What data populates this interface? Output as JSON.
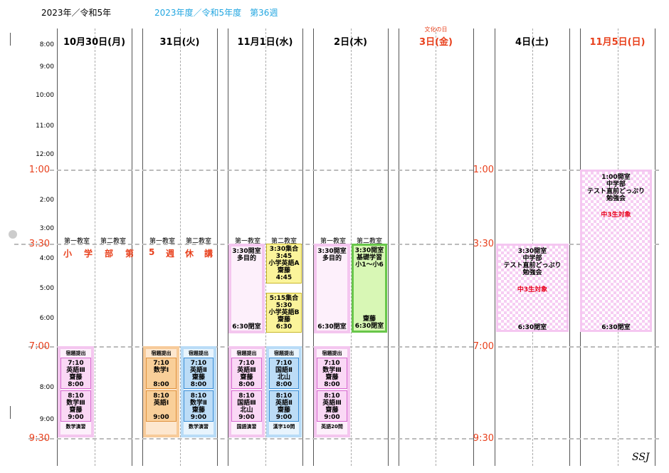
{
  "header": {
    "year_label": "2023年／令和5年",
    "fiscal_week_label": "2023年度／令和5年度　第36週",
    "signature": "SSJ"
  },
  "days": [
    {
      "label": "10月30日(月)",
      "holiday_note": ""
    },
    {
      "label": "31日(火)",
      "holiday_note": ""
    },
    {
      "label": "11月1日(水)",
      "holiday_note": ""
    },
    {
      "label": "2日(木)",
      "holiday_note": ""
    },
    {
      "label": "3日(金)",
      "holiday_note": "文化の日"
    },
    {
      "label": "4日(土)",
      "holiday_note": ""
    },
    {
      "label": "11月5日(日)",
      "holiday_note": ""
    }
  ],
  "hours": {
    "h8": "8:00",
    "h9": "9:00",
    "h10": "10:00",
    "h11": "11:00",
    "h12": "12:00",
    "h2": "2:00",
    "h3": "3:00",
    "h4": "4:00",
    "h5": "5:00",
    "h6": "6:00",
    "h8b": "8:00",
    "h9b": "9:00"
  },
  "big_times": {
    "t1": "1:00",
    "t330": "3:30",
    "t7": "7:00",
    "t930": "9:30"
  },
  "rooms": {
    "r1": "第一教室",
    "r2": "第二教室"
  },
  "monday_closed": [
    "小",
    "学",
    "部",
    "第",
    "5",
    "週",
    "休",
    "講"
  ],
  "homework": {
    "submit": "宿題提出",
    "mon_practice": "数学演習",
    "tue_practice": "数学演習",
    "wed_practice1": "国語演習",
    "wed_practice2": "漢字10問",
    "thu_practice": "英語20問"
  },
  "lessons": {
    "mon_a": [
      "7:10",
      "英語Ⅲ",
      "齋藤",
      "8:00"
    ],
    "mon_b": [
      "8:10",
      "数学Ⅲ",
      "齋藤",
      "9:00"
    ],
    "tue1_a": [
      "7:10",
      "数学Ⅰ",
      "",
      "8:00"
    ],
    "tue1_b": [
      "8:10",
      "英語Ⅰ",
      "",
      "9:00"
    ],
    "tue2_a": [
      "7:10",
      "英語Ⅱ",
      "齋藤",
      "8:00"
    ],
    "tue2_b": [
      "8:10",
      "数学Ⅱ",
      "齋藤",
      "9:00"
    ],
    "wed1_a": [
      "7:10",
      "英語Ⅲ",
      "齋藤",
      "8:00"
    ],
    "wed1_b": [
      "8:10",
      "国語Ⅲ",
      "北山",
      "9:00"
    ],
    "wed2_a": [
      "7:10",
      "国語Ⅱ",
      "北山",
      "8:00"
    ],
    "wed2_b": [
      "8:10",
      "英語Ⅱ",
      "齋藤",
      "9:00"
    ],
    "thu_a": [
      "7:10",
      "数学Ⅲ",
      "齋藤",
      "8:00"
    ],
    "thu_b": [
      "8:10",
      "英語Ⅲ",
      "齋藤",
      "9:00"
    ]
  },
  "afternoon": {
    "open_330": "3:30開室",
    "purpose": "多目的",
    "close_630": "6:30閉室",
    "wed2_a": [
      "3:30集合",
      "3:45",
      "小学英語A",
      "齋藤",
      "4:45"
    ],
    "wed2_b": [
      "5:15集合",
      "5:30",
      "小学英語B",
      "齋藤",
      "6:30"
    ],
    "thu2": [
      "3:30開室",
      "基礎学習",
      "小1～小6"
    ],
    "thu2_teacher": "齋藤",
    "sat": [
      "3:30開室",
      "中学部",
      "テスト直前どっぷり",
      "勉強会"
    ],
    "sun": [
      "1:00開室",
      "中学部",
      "テスト直前どっぷり",
      "勉強会"
    ],
    "target": "中3生対象"
  }
}
